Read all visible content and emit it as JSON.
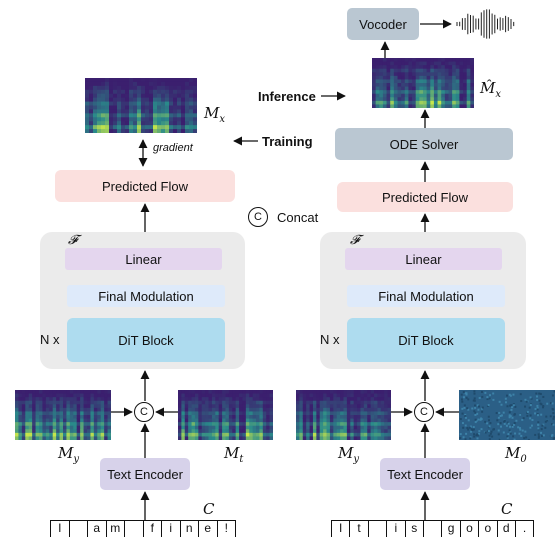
{
  "left": {
    "mel_label": "M",
    "mel_sub": "x",
    "gradient_label": "gradient",
    "predicted_flow": "Predicted Flow",
    "f_symbol": "𝓕",
    "linear": "Linear",
    "final_modulation": "Final Modulation",
    "dit_block": "DiT Block",
    "repeat_label": "N x",
    "concat_symbol": "C",
    "my_label": "M",
    "my_sub": "y",
    "mt_label": "M",
    "mt_sub": "t",
    "text_encoder": "Text Encoder",
    "c_label": "C",
    "tokens": [
      "I",
      "",
      "a",
      "m",
      "",
      "f",
      "i",
      "n",
      "e",
      "!"
    ]
  },
  "middle": {
    "training": "Training",
    "inference": "Inference",
    "concat_symbol": "C",
    "concat_label": "Concat"
  },
  "right": {
    "vocoder": "Vocoder",
    "mel_hat_label": "M̂",
    "mel_hat_sub": "x",
    "ode_solver": "ODE Solver",
    "predicted_flow": "Predicted Flow",
    "f_symbol": "𝓕",
    "linear": "Linear",
    "final_modulation": "Final Modulation",
    "dit_block": "DiT Block",
    "repeat_label": "N x",
    "concat_symbol": "C",
    "my_label": "M",
    "my_sub": "y",
    "m0_label": "M",
    "m0_sub": "0",
    "text_encoder": "Text Encoder",
    "c_label": "C",
    "tokens": [
      "I",
      "t",
      "",
      "i",
      "s",
      "",
      "g",
      "o",
      "o",
      "d",
      "."
    ]
  },
  "colors": {
    "predicted_flow": "#fbe0de",
    "linear": "#e4d6ee",
    "final_modulation": "#deeafa",
    "dit_block": "#aedcef",
    "text_encoder": "#d7d2ea",
    "ode_solver": "#bac7d2",
    "panel": "#ebebeb",
    "spectrogram_dark": "#3b1f6e",
    "spectrogram_light": "#c8e64a",
    "noise": "#2b5f86"
  }
}
